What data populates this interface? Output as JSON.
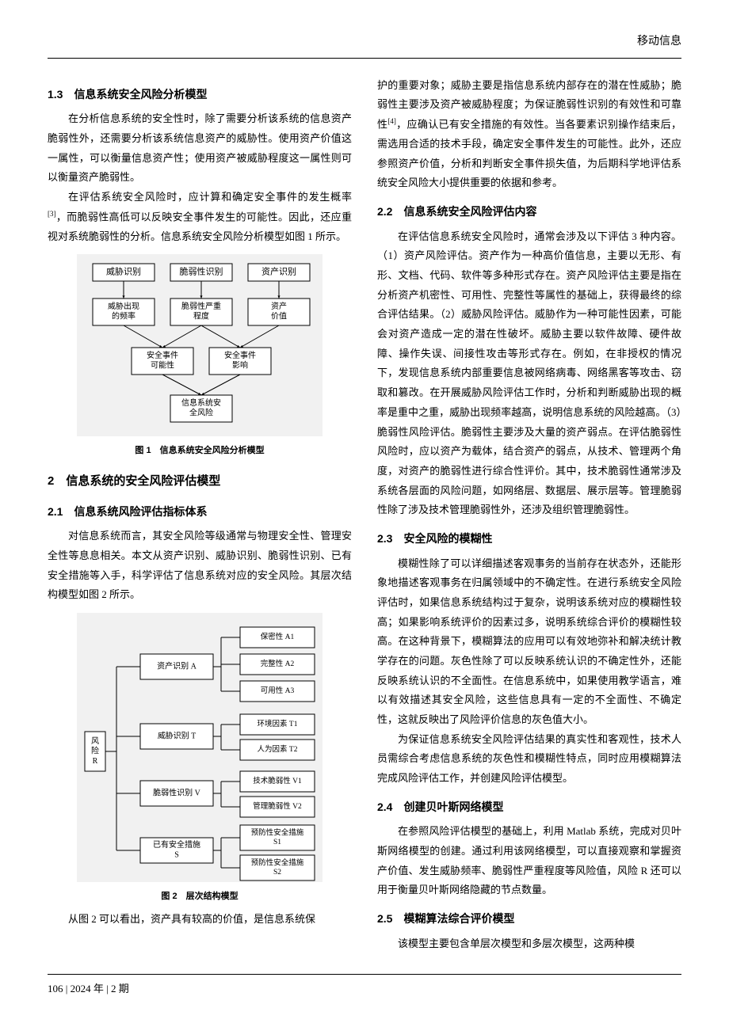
{
  "header": {
    "journal": "移动信息"
  },
  "footer": {
    "page": "106",
    "issue": "2024 年 | 2 期"
  },
  "left": {
    "s13_title": "1.3　信息系统安全风险分析模型",
    "s13_p1": "在分析信息系统的安全性时，除了需要分析该系统的信息资产脆弱性外，还需要分析该系统信息资产的威胁性。使用资产价值这一属性，可以衡量信息资产性；使用资产被威胁程度这一属性则可以衡量资产脆弱性。",
    "s13_p2a": "在评估系统安全风险时，应计算和确定安全事件的发生概率",
    "s13_ref1": "[3]",
    "s13_p2b": "，而脆弱性高低可以反映安全事件发生的可能性。因此，还应重视对系统脆弱性的分析。信息系统安全风险分析模型如图 1 所示。",
    "fig1": {
      "caption": "图 1　信息系统安全风险分析模型",
      "background_color": "#f1f1f1",
      "box_fill": "#ffffff",
      "box_stroke": "#000000",
      "r1": [
        "威胁识别",
        "脆弱性识别",
        "资产识别"
      ],
      "r2": [
        "威胁出现\n的频率",
        "脆弱性严重\n程度",
        "资产\n价值"
      ],
      "r3": [
        "安全事件\n可能性",
        "安全事件\n影响"
      ],
      "r4": "信息系统安\n全风险"
    },
    "s2_title": "2　信息系统的安全风险评估模型",
    "s21_title": "2.1　信息系统风险评估指标体系",
    "s21_p1": "对信息系统而言，其安全风险等级通常与物理安全性、管理安全性等息息相关。本文从资产识别、威胁识别、脆弱性识别、已有安全措施等入手，科学评估了信息系统对应的安全风险。其层次结构模型如图 2 所示。",
    "fig2": {
      "caption": "图 2　层次结构模型",
      "background_color": "#f1f1f1",
      "box_fill": "#ffffff",
      "box_stroke": "#000000",
      "root": "风\n险\nR",
      "level2": [
        {
          "label": "资产识别 A"
        },
        {
          "label": "威胁识别 T"
        },
        {
          "label": "脆弱性识别 V"
        },
        {
          "label": "已有安全措施\nS"
        }
      ],
      "level3": [
        "保密性 A1",
        "完整性 A2",
        "可用性 A3",
        "环境因素 T1",
        "人为因素 T2",
        "技术脆弱性 V1",
        "管理脆弱性 V2",
        "预防性安全措施\nS1",
        "预防性安全措施\nS2"
      ]
    },
    "s21_p2": "从图 2 可以看出，资产具有较高的价值，是信息系统保"
  },
  "right": {
    "p_cont_a": "护的重要对象；威胁主要是指信息系统内部存在的潜在性威胁；脆弱性主要涉及资产被威胁程度；为保证脆弱性识别的有效性和可靠性",
    "ref2": "[4]",
    "p_cont_b": "，应确认已有安全措施的有效性。当各要素识别操作结束后，需选用合适的技术手段，确定安全事件发生的可能性。此外，还应参照资产价值，分析和判断安全事件损失值，为后期科学地评估系统安全风险大小提供重要的依据和参考。",
    "s22_title": "2.2　信息系统安全风险评估内容",
    "s22_p1": "在评估信息系统安全风险时，通常会涉及以下评估 3 种内容。（1）资产风险评估。资产作为一种高价值信息，主要以无形、有形、文档、代码、软件等多种形式存在。资产风险评估主要是指在分析资产机密性、可用性、完整性等属性的基础上，获得最终的综合评估结果。（2）威胁风险评估。威胁作为一种可能性因素，可能会对资产造成一定的潜在性破坏。威胁主要以软件故障、硬件故障、操作失误、间接性攻击等形式存在。例如，在非授权的情况下，发现信息系统内部重要信息被网络病毒、网络黑客等攻击、窃取和篡改。在开展威胁风险评估工作时，分析和判断威胁出现的概率是重中之重，威胁出现频率越高，说明信息系统的风险越高。（3）脆弱性风险评估。脆弱性主要涉及大量的资产弱点。在评估脆弱性风险时，应以资产为载体，结合资产的弱点，从技术、管理两个角度，对资产的脆弱性进行综合性评价。其中，技术脆弱性通常涉及系统各层面的风险问题，如网络层、数据层、展示层等。管理脆弱性除了涉及技术管理脆弱性外，还涉及组织管理脆弱性。",
    "s23_title": "2.3　安全风险的模糊性",
    "s23_p1": "模糊性除了可以详细描述客观事务的当前存在状态外，还能形象地描述客观事务在归属领域中的不确定性。在进行系统安全风险评估时，如果信息系统结构过于复杂，说明该系统对应的模糊性较高；如果影响系统评价的因素过多，说明系统综合评价的模糊性较高。在这种背景下，模糊算法的应用可以有效地弥补和解决统计教学存在的问题。灰色性除了可以反映系统认识的不确定性外，还能反映系统认识的不全面性。在信息系统中，如果使用教学语言，难以有效描述其安全风险，这些信息具有一定的不全面性、不确定性，这就反映出了风险评价信息的灰色值大小。",
    "s23_p2": "为保证信息系统安全风险评估结果的真实性和客观性，技术人员需综合考虑信息系统的灰色性和模糊性特点，同时应用模糊算法完成风险评估工作，并创建风险评估模型。",
    "s24_title": "2.4　创建贝叶斯网络模型",
    "s24_p1": "在参照风险评估模型的基础上，利用 Matlab 系统，完成对贝叶斯网络模型的创建。通过利用该网络模型，可以直接观察和掌握资产价值、发生威胁频率、脆弱性严重程度等风险值，风险 R 还可以用于衡量贝叶斯网络隐藏的节点数量。",
    "s25_title": "2.5　模糊算法综合评价模型",
    "s25_p1": "该模型主要包含单层次模型和多层次模型，这两种模"
  }
}
